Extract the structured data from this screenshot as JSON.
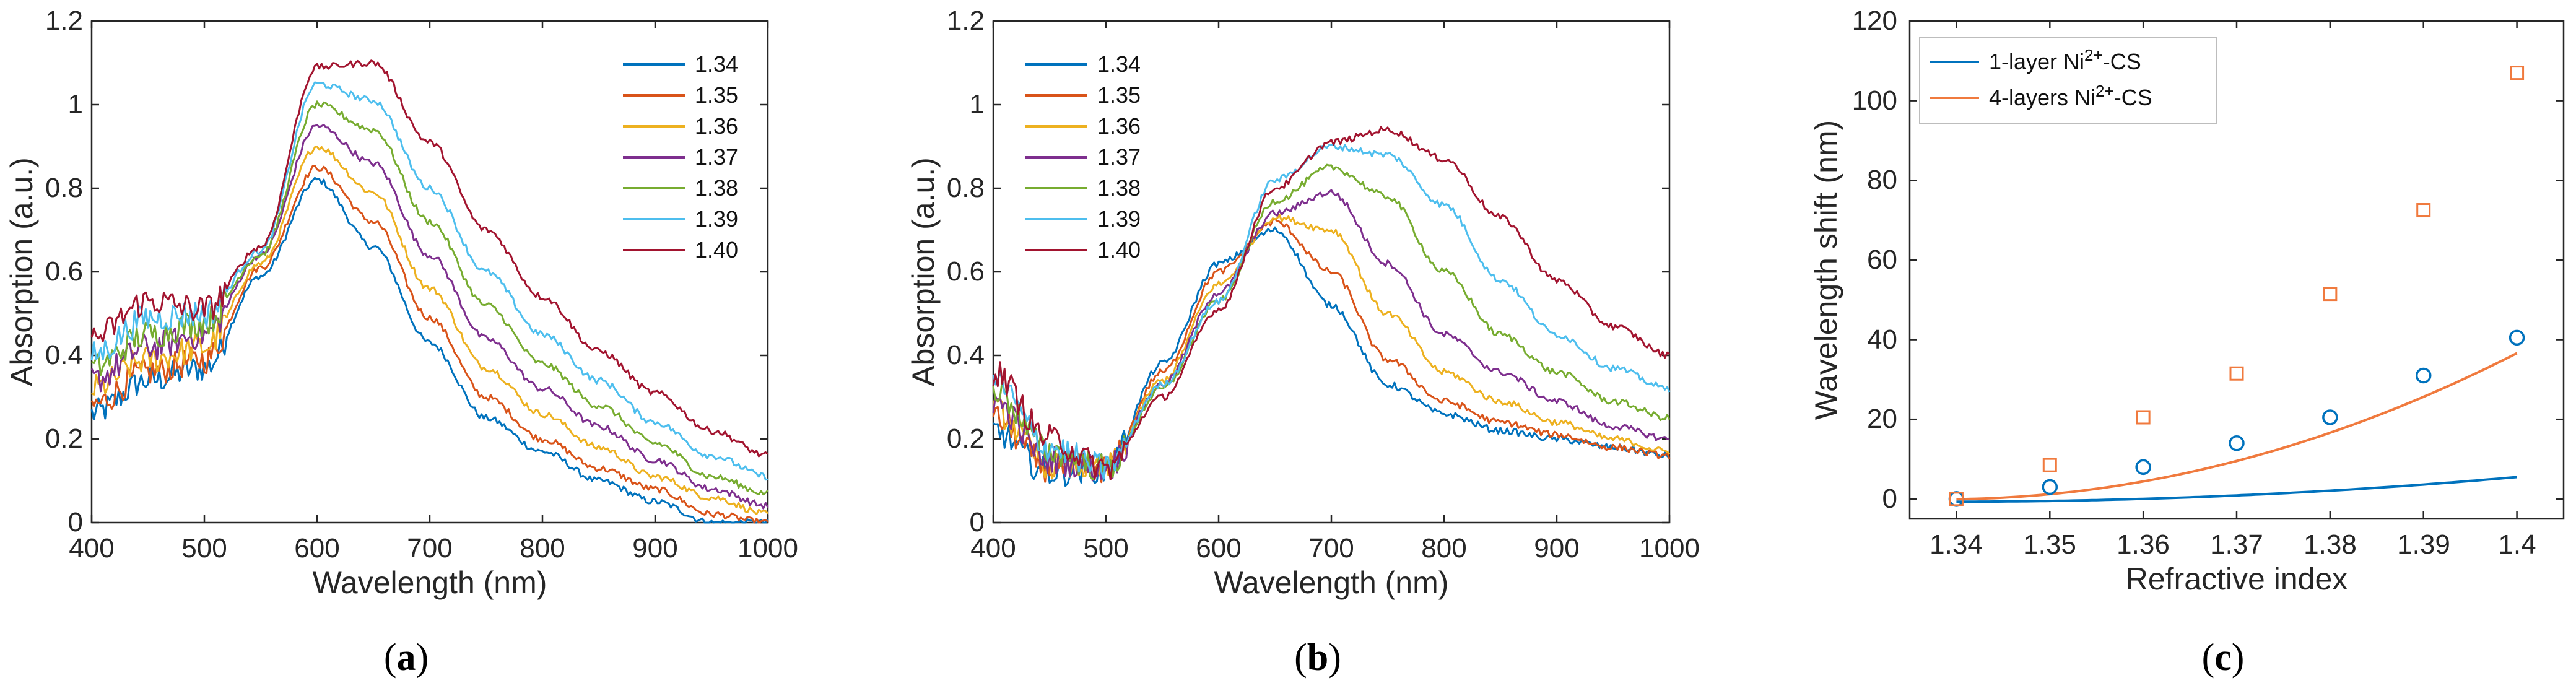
{
  "colors": [
    "#0072BD",
    "#D95319",
    "#EDB120",
    "#7E2F8E",
    "#77AC30",
    "#4DBEEE",
    "#A2142F"
  ],
  "chart_data": [
    {
      "panel": "a",
      "caption_open": "(",
      "caption_letter": "a",
      "caption_close": ")",
      "type": "line",
      "xlabel": "Wavelength (nm)",
      "ylabel": "Absorption (a.u.)",
      "xlim": [
        400,
        1000
      ],
      "ylim": [
        0,
        1.2
      ],
      "xticks": [
        "400",
        "500",
        "600",
        "700",
        "800",
        "900",
        "1000"
      ],
      "yticks": [
        "0",
        "0.2",
        "0.4",
        "0.6",
        "0.8",
        "1",
        "1.2"
      ],
      "legend_position": "top-right",
      "legend_labels": [
        "1.34",
        "1.35",
        "1.36",
        "1.37",
        "1.38",
        "1.39",
        "1.40"
      ],
      "x": [
        400,
        450,
        500,
        550,
        600,
        650,
        700,
        750,
        800,
        850,
        900,
        950,
        1000
      ],
      "series": [
        {
          "name": "1.34",
          "values": [
            0.26,
            0.34,
            0.37,
            0.59,
            0.82,
            0.66,
            0.43,
            0.25,
            0.17,
            0.1,
            0.05,
            0.0,
            0.0
          ]
        },
        {
          "name": "1.35",
          "values": [
            0.28,
            0.36,
            0.39,
            0.61,
            0.85,
            0.72,
            0.49,
            0.3,
            0.2,
            0.13,
            0.08,
            0.02,
            0.0
          ]
        },
        {
          "name": "1.36",
          "values": [
            0.32,
            0.39,
            0.42,
            0.62,
            0.9,
            0.79,
            0.56,
            0.37,
            0.26,
            0.18,
            0.11,
            0.06,
            0.02
          ]
        },
        {
          "name": "1.37",
          "values": [
            0.34,
            0.42,
            0.45,
            0.64,
            0.95,
            0.86,
            0.64,
            0.44,
            0.32,
            0.23,
            0.15,
            0.08,
            0.04
          ]
        },
        {
          "name": "1.38",
          "values": [
            0.37,
            0.45,
            0.48,
            0.64,
            1.0,
            0.94,
            0.72,
            0.52,
            0.38,
            0.28,
            0.19,
            0.11,
            0.07
          ]
        },
        {
          "name": "1.39",
          "values": [
            0.4,
            0.49,
            0.5,
            0.65,
            1.05,
            1.01,
            0.8,
            0.6,
            0.45,
            0.34,
            0.24,
            0.16,
            0.11
          ]
        },
        {
          "name": "1.40",
          "values": [
            0.44,
            0.53,
            0.51,
            0.66,
            1.09,
            1.1,
            0.91,
            0.7,
            0.54,
            0.41,
            0.31,
            0.22,
            0.16
          ]
        }
      ]
    },
    {
      "panel": "b",
      "caption_open": "(",
      "caption_letter": "b",
      "caption_close": ")",
      "type": "line",
      "xlabel": "Wavelength (nm)",
      "ylabel": "Absorption (a.u.)",
      "xlim": [
        400,
        1000
      ],
      "ylim": [
        0,
        1.2
      ],
      "xticks": [
        "400",
        "500",
        "600",
        "700",
        "800",
        "900",
        "1000"
      ],
      "yticks": [
        "0",
        "0.2",
        "0.4",
        "0.6",
        "0.8",
        "1",
        "1.2"
      ],
      "legend_position": "top-left",
      "legend_labels": [
        "1.34",
        "1.35",
        "1.36",
        "1.37",
        "1.38",
        "1.39",
        "1.40"
      ],
      "x": [
        400,
        450,
        500,
        550,
        600,
        650,
        700,
        750,
        800,
        850,
        900,
        950,
        1000
      ],
      "series": [
        {
          "name": "1.34",
          "values": [
            0.22,
            0.12,
            0.13,
            0.38,
            0.62,
            0.7,
            0.52,
            0.33,
            0.26,
            0.22,
            0.2,
            0.18,
            0.16
          ]
        },
        {
          "name": "1.35",
          "values": [
            0.25,
            0.13,
            0.13,
            0.36,
            0.6,
            0.72,
            0.6,
            0.39,
            0.29,
            0.24,
            0.21,
            0.18,
            0.16
          ]
        },
        {
          "name": "1.36",
          "values": [
            0.27,
            0.14,
            0.13,
            0.34,
            0.57,
            0.73,
            0.7,
            0.5,
            0.36,
            0.29,
            0.24,
            0.2,
            0.17
          ]
        },
        {
          "name": "1.37",
          "values": [
            0.29,
            0.15,
            0.13,
            0.33,
            0.55,
            0.74,
            0.79,
            0.62,
            0.45,
            0.36,
            0.29,
            0.23,
            0.2
          ]
        },
        {
          "name": "1.38",
          "values": [
            0.32,
            0.17,
            0.13,
            0.32,
            0.53,
            0.77,
            0.85,
            0.78,
            0.6,
            0.45,
            0.36,
            0.29,
            0.25
          ]
        },
        {
          "name": "1.39",
          "values": [
            0.34,
            0.18,
            0.13,
            0.33,
            0.53,
            0.82,
            0.9,
            0.88,
            0.76,
            0.58,
            0.45,
            0.37,
            0.32
          ]
        },
        {
          "name": "1.40",
          "values": [
            0.36,
            0.2,
            0.13,
            0.3,
            0.51,
            0.8,
            0.91,
            0.94,
            0.87,
            0.73,
            0.58,
            0.47,
            0.4
          ]
        }
      ]
    },
    {
      "panel": "c",
      "caption_open": "(",
      "caption_letter": "c",
      "caption_close": ")",
      "type": "scatter",
      "xlabel": "Refractive index",
      "ylabel": "Wavelength shift (nm)",
      "xlim": [
        1.335,
        1.405
      ],
      "ylim": [
        -5,
        120
      ],
      "xticks": [
        "1.34",
        "1.35",
        "1.36",
        "1.37",
        "1.38",
        "1.39",
        "1.4"
      ],
      "yticks": [
        "0",
        "20",
        "40",
        "60",
        "80",
        "100",
        "120"
      ],
      "legend_position": "top-left",
      "x": [
        1.34,
        1.35,
        1.36,
        1.37,
        1.38,
        1.39,
        1.4
      ],
      "series": [
        {
          "name": "1-layer Ni2+-CS",
          "label_main": "1-layer Ni",
          "label_sup": "2+",
          "label_tail": "-CS",
          "marker": "circle",
          "values": [
            0,
            3,
            8,
            14,
            20.5,
            31,
            40.5
          ],
          "fit": [
            1700.0,
            -4555.0,
            3050.5
          ]
        },
        {
          "name": "4-layers Ni2+-CS",
          "label_main": "4-layers Ni",
          "label_sup": "2+",
          "label_tail": "-CS",
          "marker": "square",
          "values": [
            0,
            8.5,
            20.5,
            31.5,
            51.5,
            72.5,
            107
          ],
          "fit": [
            9702.4,
            -25973.5,
            17382.8
          ]
        }
      ]
    }
  ]
}
